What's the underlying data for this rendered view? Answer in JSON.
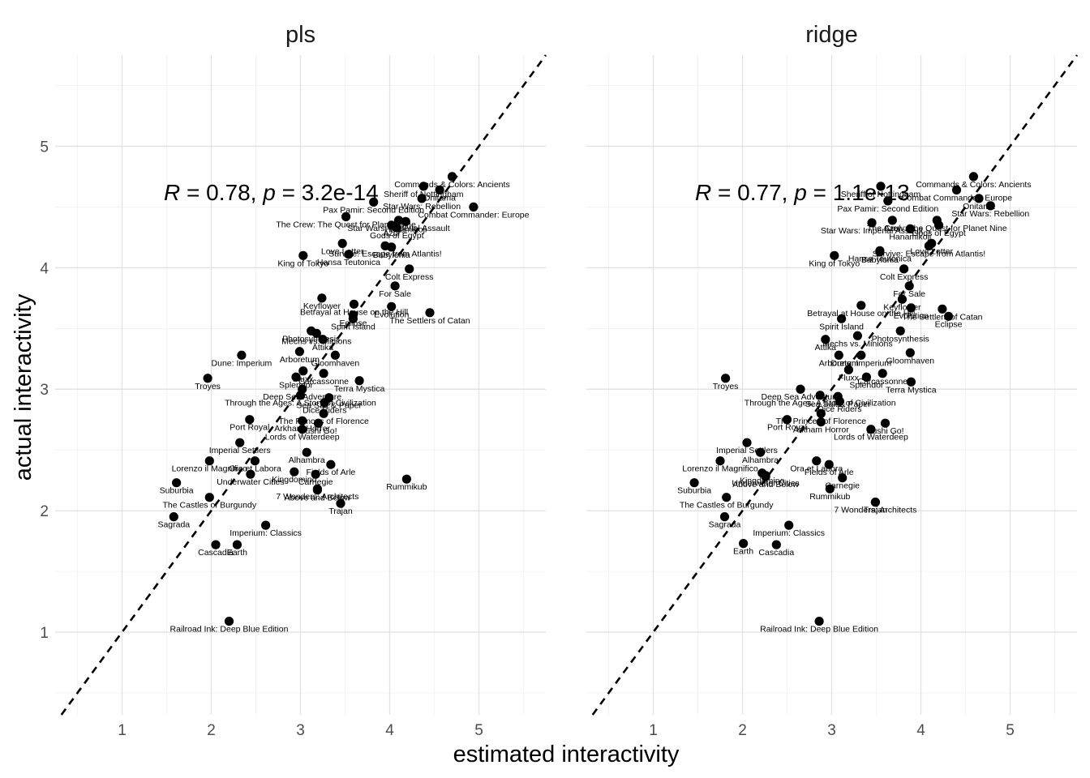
{
  "chart_data": {
    "type": "scatter",
    "xlabel": "estimated interactivity",
    "ylabel": "actual interactivity",
    "xlim": [
      0.25,
      5.75
    ],
    "ylim": [
      0.32,
      5.75
    ],
    "x_ticks": [
      1,
      2,
      3,
      4,
      5
    ],
    "y_ticks": [
      1,
      2,
      3,
      4,
      5
    ],
    "grid": true,
    "reference_line": "y = x (dashed)",
    "facets": [
      {
        "name": "pls",
        "stat": {
          "r_symbol": "R",
          "r_value": "0.78",
          "p_symbol": "p",
          "p_value": "3.2e-14"
        },
        "points": [
          {
            "label": "Commands & Colors: Ancients",
            "x": 4.7,
            "y": 4.75
          },
          {
            "label": "Sheriff of Nottingham",
            "x": 4.38,
            "y": 4.67
          },
          {
            "label": "Onitama",
            "x": 4.56,
            "y": 4.64
          },
          {
            "label": "Star Wars: Rebellion",
            "x": 4.36,
            "y": 4.57
          },
          {
            "label": "Combat Commander: Europe",
            "x": 4.94,
            "y": 4.5
          },
          {
            "label": "Pax Pamir: Second Edition",
            "x": 3.82,
            "y": 4.54
          },
          {
            "label": "The Crew: The Quest for Planet Nine",
            "x": 3.51,
            "y": 4.42
          },
          {
            "label": "Star Wars: Imperial Assault",
            "x": 4.1,
            "y": 4.39
          },
          {
            "label": "Hanamikoji",
            "x": 4.18,
            "y": 4.38
          },
          {
            "label": "Azul",
            "x": 4.02,
            "y": 4.35
          },
          {
            "label": "Gods of Egypt",
            "x": 4.08,
            "y": 4.33
          },
          {
            "label": "Love Letter",
            "x": 3.47,
            "y": 4.2
          },
          {
            "label": "Survive: Escape from Atlantis!",
            "x": 3.95,
            "y": 4.18
          },
          {
            "label": "Hansa Teutonica",
            "x": 3.54,
            "y": 4.11
          },
          {
            "label": "Babylonia",
            "x": 4.02,
            "y": 4.17
          },
          {
            "label": "King of Tokyo",
            "x": 3.03,
            "y": 4.1
          },
          {
            "label": "Colt Express",
            "x": 4.22,
            "y": 3.99
          },
          {
            "label": "For Sale",
            "x": 4.06,
            "y": 3.85
          },
          {
            "label": "Keyflower",
            "x": 3.24,
            "y": 3.75
          },
          {
            "label": "Betrayal at House on the Hill",
            "x": 3.6,
            "y": 3.7
          },
          {
            "label": "Evolution",
            "x": 4.02,
            "y": 3.68
          },
          {
            "label": "The Settlers of Catan",
            "x": 4.45,
            "y": 3.63
          },
          {
            "label": "Eclipse",
            "x": 3.59,
            "y": 3.61
          },
          {
            "label": "Spirit Island",
            "x": 3.59,
            "y": 3.58
          },
          {
            "label": "Photosynthesis",
            "x": 3.12,
            "y": 3.48
          },
          {
            "label": "Mechs vs. Minions",
            "x": 3.18,
            "y": 3.46
          },
          {
            "label": "Attika",
            "x": 3.25,
            "y": 3.41
          },
          {
            "label": "Arboretum",
            "x": 2.99,
            "y": 3.31
          },
          {
            "label": "Dune: Imperium",
            "x": 2.34,
            "y": 3.28
          },
          {
            "label": "Gloomhaven",
            "x": 3.39,
            "y": 3.28
          },
          {
            "label": "Fluxx",
            "x": 3.03,
            "y": 3.15
          },
          {
            "label": "Carcassonne",
            "x": 3.26,
            "y": 3.13
          },
          {
            "label": "Splendor",
            "x": 2.95,
            "y": 3.1
          },
          {
            "label": "Terra Mystica",
            "x": 3.66,
            "y": 3.07
          },
          {
            "label": "Troyes",
            "x": 1.96,
            "y": 3.09
          },
          {
            "label": "Deep Sea Adventure",
            "x": 3.02,
            "y": 3.0
          },
          {
            "label": "Through the Ages: A Story of Civilization",
            "x": 3.0,
            "y": 2.95
          },
          {
            "label": "Sea Salt & Paper",
            "x": 3.32,
            "y": 2.93
          },
          {
            "label": "Dice Riders",
            "x": 3.27,
            "y": 2.89
          },
          {
            "label": "The Princes of Florence",
            "x": 3.26,
            "y": 2.8
          },
          {
            "label": "Port Royal",
            "x": 2.43,
            "y": 2.75
          },
          {
            "label": "Arkham Horror",
            "x": 3.02,
            "y": 2.74
          },
          {
            "label": "Sushi Go!",
            "x": 3.2,
            "y": 2.72
          },
          {
            "label": "Lords of Waterdeep",
            "x": 3.02,
            "y": 2.67
          },
          {
            "label": "Imperial Settlers",
            "x": 2.32,
            "y": 2.56
          },
          {
            "label": "Alhambra",
            "x": 3.07,
            "y": 2.48
          },
          {
            "label": "Ora et Labora",
            "x": 2.49,
            "y": 2.41
          },
          {
            "label": "Lorenzo il Magnifico",
            "x": 1.98,
            "y": 2.41
          },
          {
            "label": "Fields of Arle",
            "x": 3.34,
            "y": 2.38
          },
          {
            "label": "Kingdomino",
            "x": 2.93,
            "y": 2.32
          },
          {
            "label": "Underwater Cities",
            "x": 2.44,
            "y": 2.3
          },
          {
            "label": "Carnegie",
            "x": 3.17,
            "y": 2.3
          },
          {
            "label": "Above and Below",
            "x": 3.19,
            "y": 2.17
          },
          {
            "label": "Rummikub",
            "x": 4.19,
            "y": 2.26
          },
          {
            "label": "Suburbia",
            "x": 1.61,
            "y": 2.23
          },
          {
            "label": "7 Wonders: Architects",
            "x": 3.19,
            "y": 2.18
          },
          {
            "label": "The Castles of Burgundy",
            "x": 1.98,
            "y": 2.11
          },
          {
            "label": "Trajan",
            "x": 3.45,
            "y": 2.06
          },
          {
            "label": "Sagrada",
            "x": 1.58,
            "y": 1.95
          },
          {
            "label": "Imperium: Classics",
            "x": 2.61,
            "y": 1.88
          },
          {
            "label": "Cascadia",
            "x": 2.05,
            "y": 1.72
          },
          {
            "label": "Earth",
            "x": 2.29,
            "y": 1.72
          },
          {
            "label": "Railroad Ink: Deep Blue Edition",
            "x": 2.2,
            "y": 1.09
          }
        ]
      },
      {
        "name": "ridge",
        "stat": {
          "r_symbol": "R",
          "r_value": "0.77",
          "p_symbol": "p",
          "p_value": "1.1e-13"
        },
        "points": [
          {
            "label": "Commands & Colors: Ancients",
            "x": 4.59,
            "y": 4.75
          },
          {
            "label": "Sheriff of Nottingham",
            "x": 3.55,
            "y": 4.67
          },
          {
            "label": "Onitama",
            "x": 4.65,
            "y": 4.57
          },
          {
            "label": "Star Wars: Rebellion",
            "x": 4.78,
            "y": 4.51
          },
          {
            "label": "Combat Commander: Europe",
            "x": 4.4,
            "y": 4.64
          },
          {
            "label": "Pax Pamir: Second Edition",
            "x": 3.63,
            "y": 4.55
          },
          {
            "label": "The Crew: The Quest for Planet Nine",
            "x": 4.18,
            "y": 4.39
          },
          {
            "label": "Star Wars: Imperial Assault",
            "x": 3.45,
            "y": 4.37
          },
          {
            "label": "Hanamikoji",
            "x": 3.88,
            "y": 4.32
          },
          {
            "label": "Azul",
            "x": 3.68,
            "y": 4.39
          },
          {
            "label": "Gods of Egypt",
            "x": 4.2,
            "y": 4.35
          },
          {
            "label": "Love Letter",
            "x": 4.12,
            "y": 4.2
          },
          {
            "label": "Survive: Escape from Atlantis!",
            "x": 4.09,
            "y": 4.18
          },
          {
            "label": "Hansa Teutonica",
            "x": 3.54,
            "y": 4.14
          },
          {
            "label": "Babylonia",
            "x": 3.54,
            "y": 4.13
          },
          {
            "label": "King of Tokyo",
            "x": 3.03,
            "y": 4.1
          },
          {
            "label": "Colt Express",
            "x": 3.81,
            "y": 3.99
          },
          {
            "label": "For Sale",
            "x": 3.87,
            "y": 3.85
          },
          {
            "label": "Keyflower",
            "x": 3.79,
            "y": 3.74
          },
          {
            "label": "Betrayal at House on the Hill",
            "x": 3.33,
            "y": 3.69
          },
          {
            "label": "Evolution",
            "x": 3.89,
            "y": 3.67
          },
          {
            "label": "The Settlers of Catan",
            "x": 4.24,
            "y": 3.66
          },
          {
            "label": "Eclipse",
            "x": 4.31,
            "y": 3.6
          },
          {
            "label": "Spirit Island",
            "x": 3.11,
            "y": 3.58
          },
          {
            "label": "Photosynthesis",
            "x": 3.77,
            "y": 3.48
          },
          {
            "label": "Mechs vs. Minions",
            "x": 3.29,
            "y": 3.44
          },
          {
            "label": "Attika",
            "x": 2.93,
            "y": 3.41
          },
          {
            "label": "Arboretum",
            "x": 3.08,
            "y": 3.28
          },
          {
            "label": "Dune: Imperium",
            "x": 3.33,
            "y": 3.28
          },
          {
            "label": "Gloomhaven",
            "x": 3.88,
            "y": 3.3
          },
          {
            "label": "Fluxx",
            "x": 3.19,
            "y": 3.16
          },
          {
            "label": "Carcassonne",
            "x": 3.57,
            "y": 3.13
          },
          {
            "label": "Splendor",
            "x": 3.39,
            "y": 3.1
          },
          {
            "label": "Terra Mystica",
            "x": 3.89,
            "y": 3.06
          },
          {
            "label": "Troyes",
            "x": 1.81,
            "y": 3.09
          },
          {
            "label": "Deep Sea Adventure",
            "x": 2.65,
            "y": 3.0
          },
          {
            "label": "Through the Ages: A Story of Civilization",
            "x": 2.87,
            "y": 2.95
          },
          {
            "label": "Sea Salt & Paper",
            "x": 3.07,
            "y": 2.94
          },
          {
            "label": "Dice Riders",
            "x": 3.09,
            "y": 2.9
          },
          {
            "label": "The Princes of Florence",
            "x": 2.88,
            "y": 2.8
          },
          {
            "label": "Port Royal",
            "x": 2.5,
            "y": 2.75
          },
          {
            "label": "Arkham Horror",
            "x": 2.88,
            "y": 2.73
          },
          {
            "label": "Sushi Go!",
            "x": 3.6,
            "y": 2.72
          },
          {
            "label": "Lords of Waterdeep",
            "x": 3.44,
            "y": 2.67
          },
          {
            "label": "Imperial Settlers",
            "x": 2.05,
            "y": 2.56
          },
          {
            "label": "Alhambra",
            "x": 2.2,
            "y": 2.48
          },
          {
            "label": "Ora et Labora",
            "x": 2.83,
            "y": 2.41
          },
          {
            "label": "Lorenzo il Magnifico",
            "x": 1.75,
            "y": 2.41
          },
          {
            "label": "Fields of Arle",
            "x": 2.97,
            "y": 2.38
          },
          {
            "label": "Kingdomino",
            "x": 2.22,
            "y": 2.31
          },
          {
            "label": "Underwater Cities",
            "x": 2.26,
            "y": 2.29
          },
          {
            "label": "Carnegie",
            "x": 3.12,
            "y": 2.27
          },
          {
            "label": "Above and Below",
            "x": 2.26,
            "y": 2.28
          },
          {
            "label": "Rummikub",
            "x": 2.98,
            "y": 2.18
          },
          {
            "label": "Suburbia",
            "x": 1.46,
            "y": 2.23
          },
          {
            "label": "7 Wonders: Architects",
            "x": 3.49,
            "y": 2.07
          },
          {
            "label": "The Castles of Burgundy",
            "x": 1.82,
            "y": 2.11
          },
          {
            "label": "Trajan",
            "x": 3.49,
            "y": 2.07
          },
          {
            "label": "Sagrada",
            "x": 1.8,
            "y": 1.95
          },
          {
            "label": "Imperium: Classics",
            "x": 2.52,
            "y": 1.88
          },
          {
            "label": "Cascadia",
            "x": 2.38,
            "y": 1.72
          },
          {
            "label": "Earth",
            "x": 2.01,
            "y": 1.73
          },
          {
            "label": "Railroad Ink: Deep Blue Edition",
            "x": 2.86,
            "y": 1.09
          }
        ]
      }
    ]
  }
}
